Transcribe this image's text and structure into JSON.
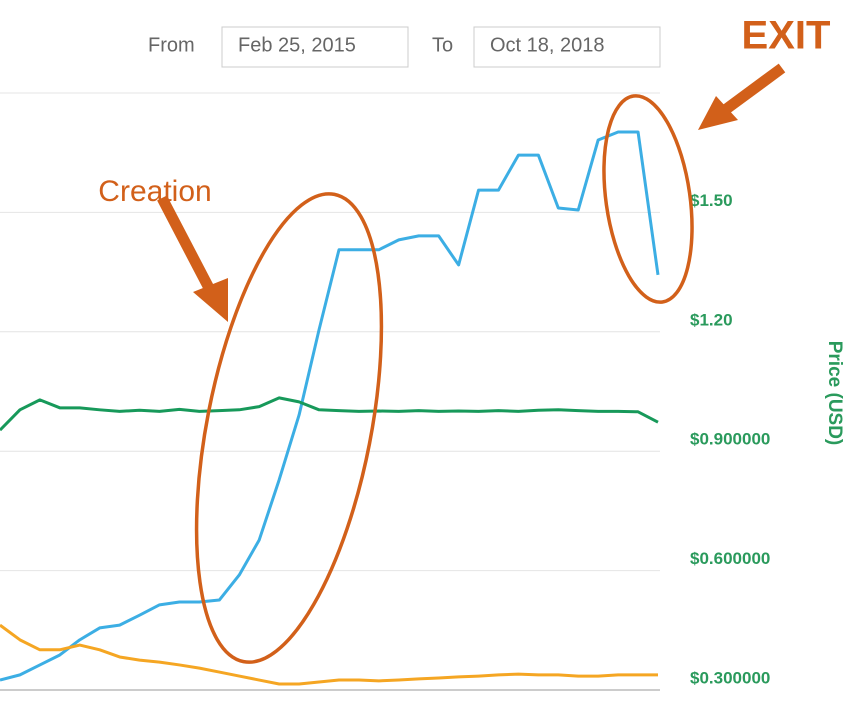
{
  "chart_data": {
    "type": "line",
    "from_label": "From",
    "from_date": "Feb 25, 2015",
    "to_label": "To",
    "to_date": "Oct 18, 2018",
    "y_label": "Price (USD)",
    "annotations": [
      "Creation",
      "EXIT"
    ],
    "annotation_color": "#d2601a",
    "ylim": [
      0.3,
      1.8
    ],
    "yticks": [
      {
        "value": 0.3,
        "label": "$0.300000"
      },
      {
        "value": 0.6,
        "label": "$0.600000"
      },
      {
        "value": 0.9,
        "label": "$0.900000"
      },
      {
        "value": 1.2,
        "label": "$1.20"
      },
      {
        "value": 1.5,
        "label": "$1.50"
      },
      {
        "value": 1.8,
        "label": ""
      }
    ],
    "axis_color": "#2a9a5c",
    "yaxis_position": "right",
    "grid": true,
    "series": [
      {
        "color": "#3caee4",
        "values": [
          0.325,
          0.338,
          0.363,
          0.388,
          0.426,
          0.456,
          0.463,
          0.488,
          0.514,
          0.521,
          0.521,
          0.526,
          0.589,
          0.677,
          0.828,
          0.991,
          1.205,
          1.406,
          1.406,
          1.406,
          1.431,
          1.441,
          1.441,
          1.368,
          1.556,
          1.556,
          1.644,
          1.644,
          1.511,
          1.506,
          1.682,
          1.702,
          1.702,
          1.343
        ]
      },
      {
        "color": "#17995a",
        "values": [
          0.953,
          1.004,
          1.029,
          1.009,
          1.009,
          1.004,
          1.0,
          1.003,
          1.0,
          1.005,
          1.0,
          1.002,
          1.004,
          1.012,
          1.034,
          1.024,
          1.004,
          1.002,
          1.0,
          1.001,
          1.0,
          1.002,
          1.0,
          1.001,
          1.0,
          1.002,
          1.0,
          1.003,
          1.004,
          1.002,
          1.0,
          1.0,
          0.999,
          0.973
        ]
      },
      {
        "color": "#f5a623",
        "values": [
          0.463,
          0.426,
          0.401,
          0.401,
          0.413,
          0.401,
          0.383,
          0.375,
          0.37,
          0.363,
          0.355,
          0.345,
          0.335,
          0.325,
          0.315,
          0.315,
          0.32,
          0.325,
          0.325,
          0.323,
          0.325,
          0.328,
          0.33,
          0.333,
          0.335,
          0.338,
          0.34,
          0.338,
          0.338,
          0.335,
          0.335,
          0.338,
          0.338,
          0.338
        ]
      }
    ]
  }
}
